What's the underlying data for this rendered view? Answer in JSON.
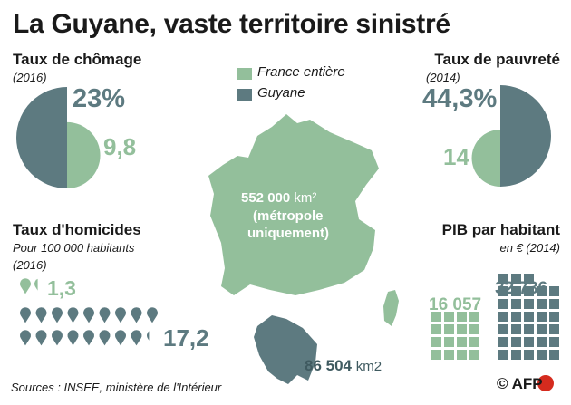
{
  "title": "La Guyane, vaste territoire sinistré",
  "colors": {
    "france": "#93bf9b",
    "guyane": "#5d7a80",
    "text": "#1a1a1a",
    "light_text": "#ffffff"
  },
  "legend": {
    "france_label": "France entière",
    "guyane_label": "Guyane"
  },
  "map": {
    "france_area_value": "552 000",
    "france_area_unit": "km²",
    "france_area_note_1": "(métropole",
    "france_area_note_2": "uniquement)",
    "guyane_area_value": "86 504",
    "guyane_area_unit": "km2"
  },
  "source": "Sources : INSEE, ministère de l'Intérieur",
  "logo": "© AFP",
  "chart_data": [
    {
      "type": "pie",
      "title": "Taux de chômage",
      "subtitle": "(2016)",
      "series": [
        {
          "name": "Guyane",
          "value": 23,
          "label": "23%"
        },
        {
          "name": "France entière",
          "value": 9.8,
          "label": "9,8"
        }
      ]
    },
    {
      "type": "pie",
      "title": "Taux de pauvreté",
      "subtitle": "(2014)",
      "series": [
        {
          "name": "Guyane",
          "value": 44.3,
          "label": "44,3%"
        },
        {
          "name": "France entière",
          "value": 14,
          "label": "14"
        }
      ]
    },
    {
      "type": "pictogram",
      "title": "Taux d'homicides",
      "subtitle_1": "Pour 100 000 habitants",
      "subtitle_2": "(2016)",
      "series": [
        {
          "name": "France entière",
          "value": 1.3,
          "label": "1,3"
        },
        {
          "name": "Guyane",
          "value": 17.2,
          "label": "17,2"
        }
      ]
    },
    {
      "type": "pictogram",
      "title": "PIB par habitant",
      "subtitle": "en € (2014)",
      "series": [
        {
          "name": "France entière",
          "value": 16057,
          "label": "16 057"
        },
        {
          "name": "Guyane",
          "value": 32736,
          "label": "32 736"
        }
      ]
    }
  ]
}
